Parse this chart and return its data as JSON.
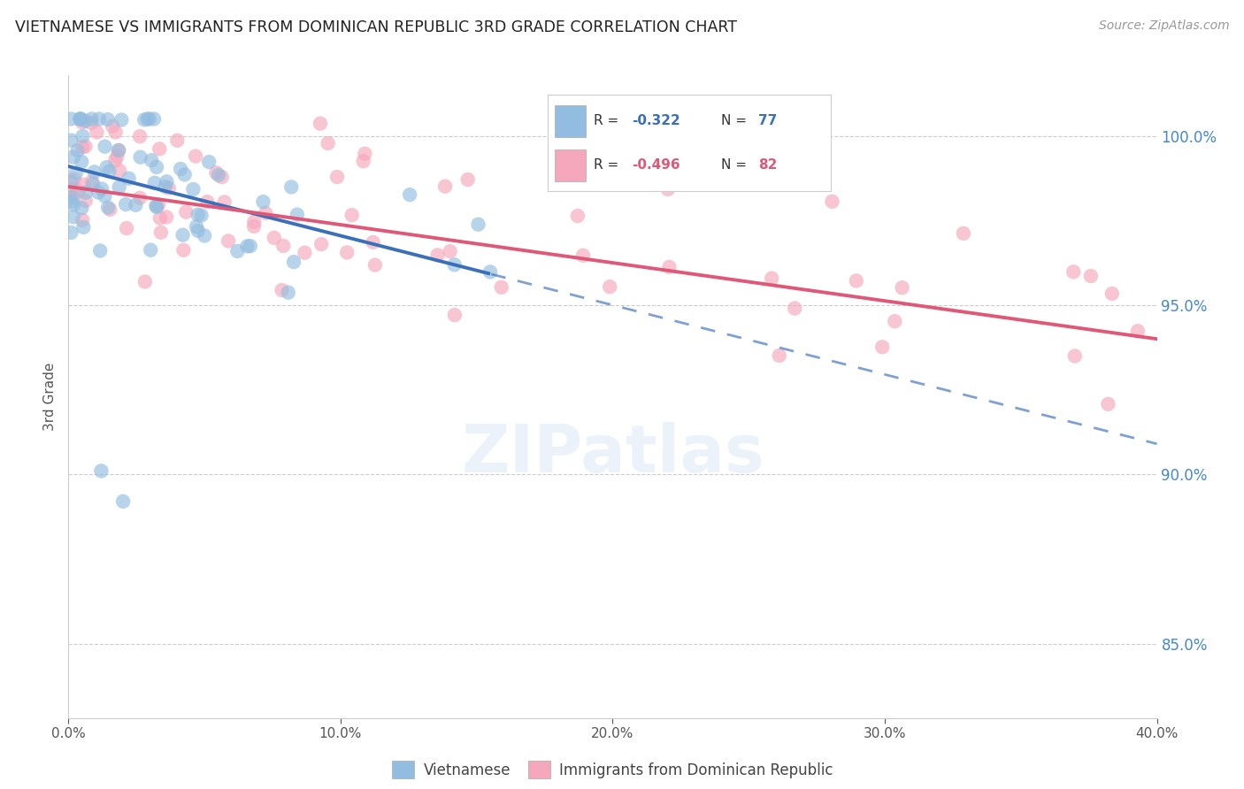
{
  "title": "VIETNAMESE VS IMMIGRANTS FROM DOMINICAN REPUBLIC 3RD GRADE CORRELATION CHART",
  "source": "Source: ZipAtlas.com",
  "ylabel": "3rd Grade",
  "ytick_labels": [
    "100.0%",
    "95.0%",
    "90.0%",
    "85.0%"
  ],
  "ytick_values": [
    1.0,
    0.95,
    0.9,
    0.85
  ],
  "xlim": [
    0.0,
    0.4
  ],
  "ylim": [
    0.828,
    1.018
  ],
  "r_vietnamese": -0.322,
  "n_vietnamese": 77,
  "r_dominican": -0.496,
  "n_dominican": 82,
  "legend_label_1": "Vietnamese",
  "legend_label_2": "Immigrants from Dominican Republic",
  "color_vietnamese": "#92bde0",
  "color_dominican": "#f5a8bc",
  "color_trend_vietnamese": "#3a6fba",
  "color_trend_dominican": "#e05878",
  "title_color": "#222222",
  "axis_label_color": "#555555",
  "right_axis_color": "#4488cc",
  "background_color": "#ffffff",
  "grid_color": "#cccccc",
  "trend_v_x0": 0.0,
  "trend_v_y0": 0.991,
  "trend_v_x1": 0.4,
  "trend_v_y1": 0.909,
  "trend_v_solid_end": 0.155,
  "trend_d_x0": 0.0,
  "trend_d_y0": 0.985,
  "trend_d_x1": 0.4,
  "trend_d_y1": 0.94
}
